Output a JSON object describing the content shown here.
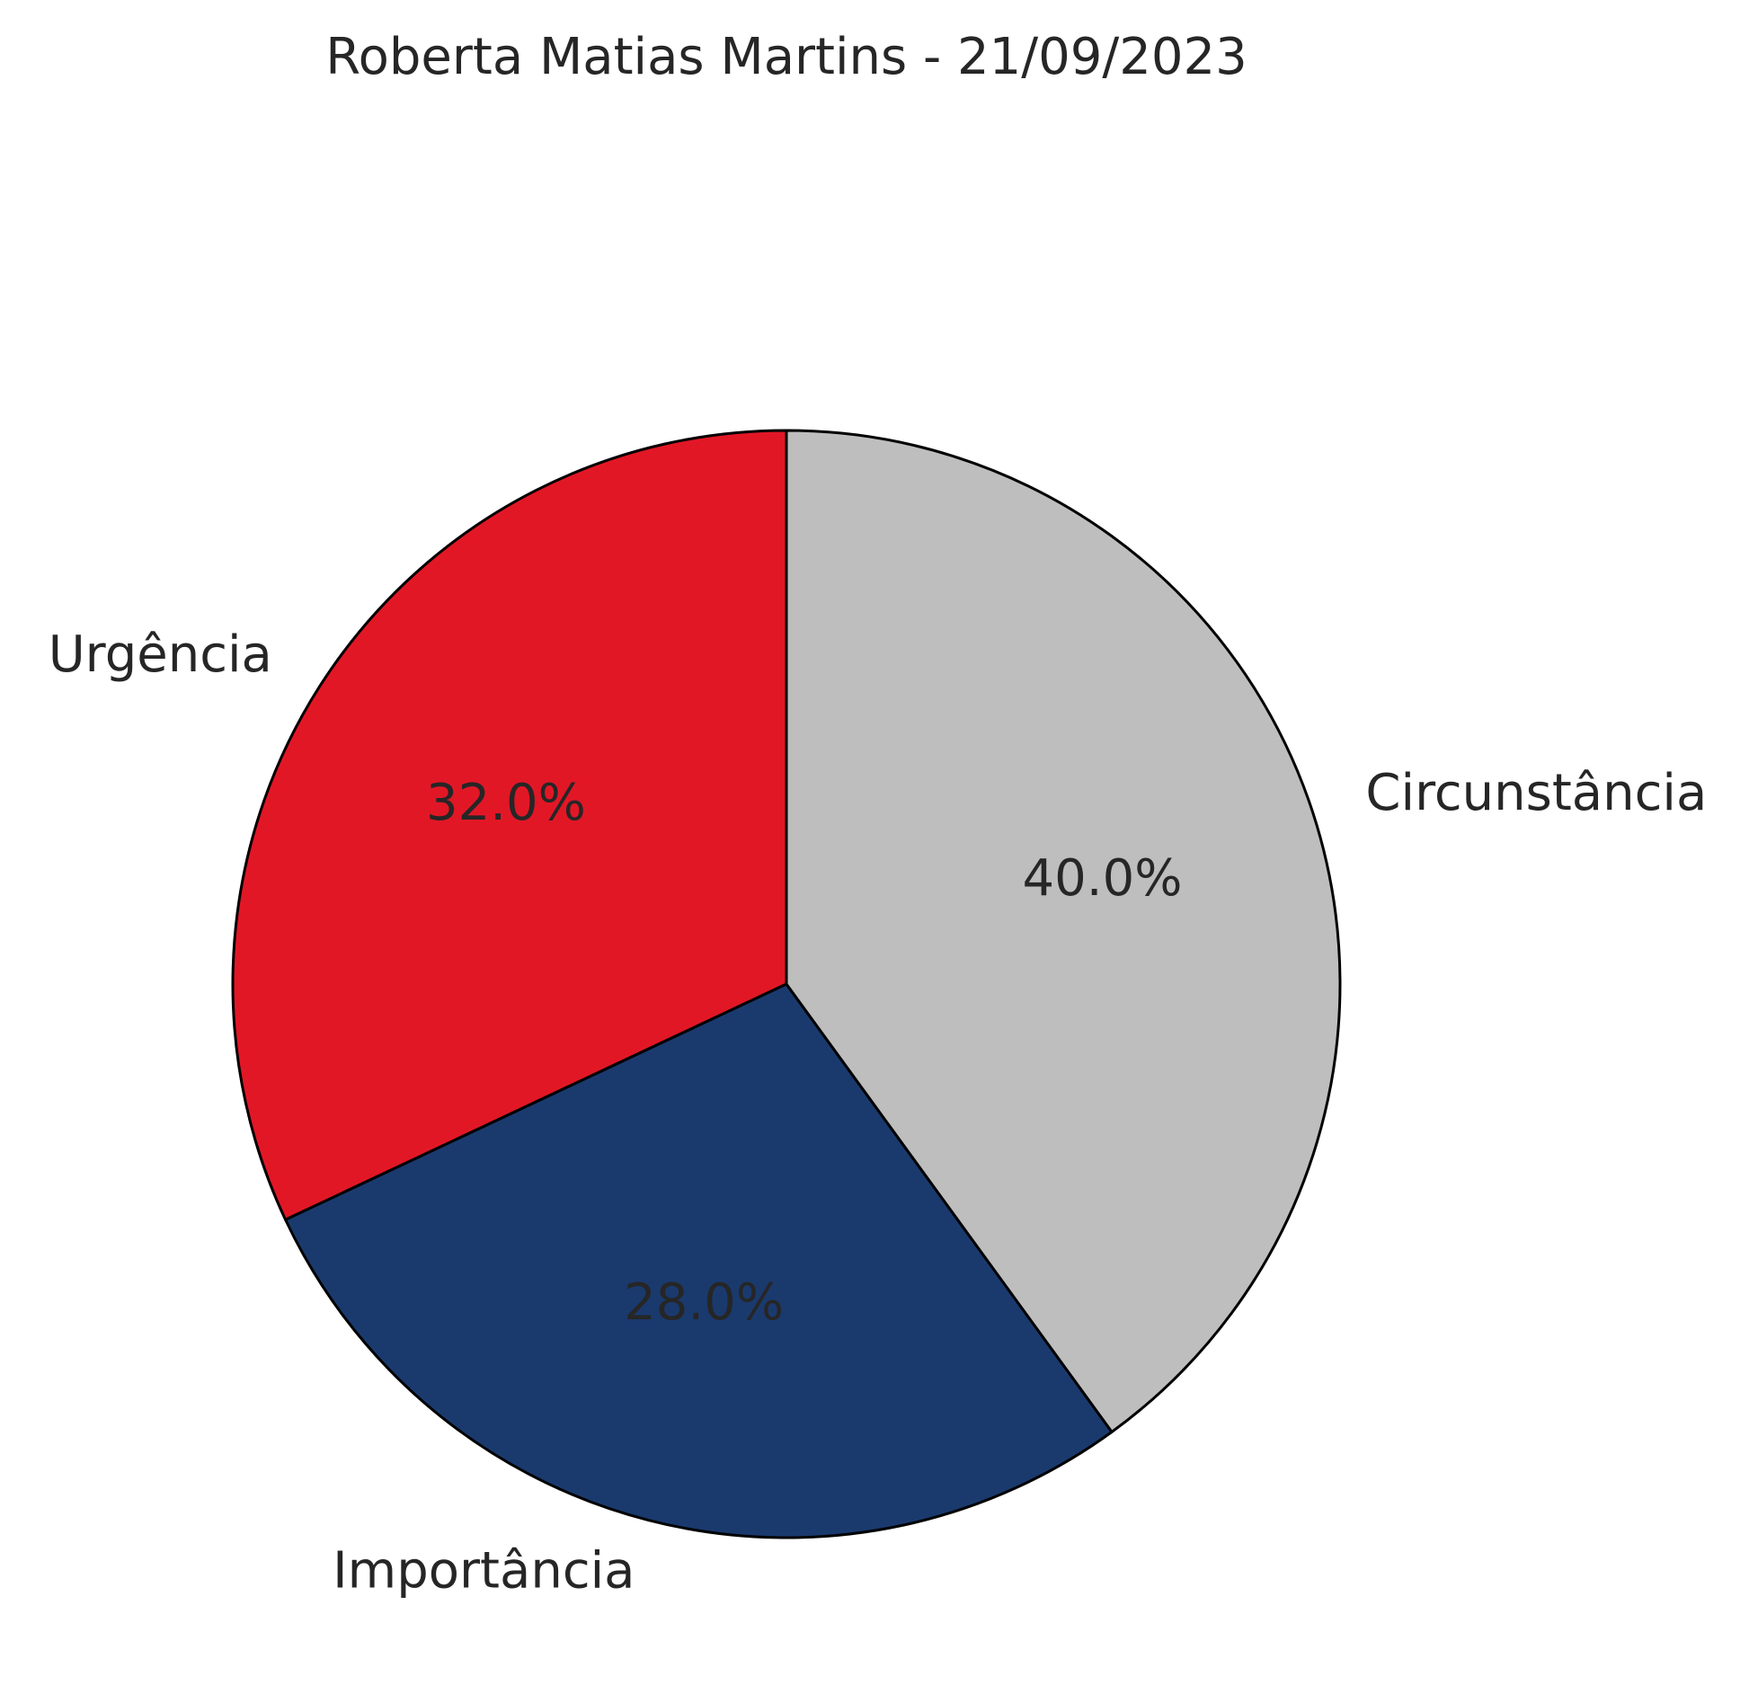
{
  "chart_data": {
    "type": "pie",
    "title": "Roberta Matias Martins - 21/09/2023",
    "start_angle_deg": 90,
    "direction": "counterclockwise",
    "slices": [
      {
        "label": "Urgência",
        "value": 32.0,
        "pct_label": "32.0%",
        "color": "#e21726"
      },
      {
        "label": "Importância",
        "value": 28.0,
        "pct_label": "28.0%",
        "color": "#1a3a6e"
      },
      {
        "label": "Circunstância",
        "value": 40.0,
        "pct_label": "40.0%",
        "color": "#bdbebd"
      }
    ],
    "edge_color": "#000000"
  }
}
